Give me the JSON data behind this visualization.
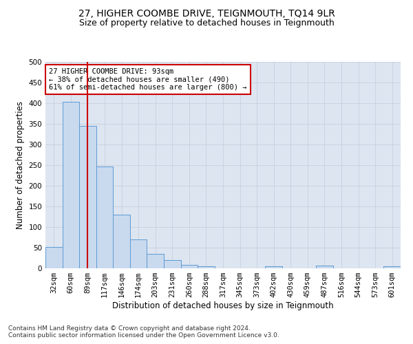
{
  "title": "27, HIGHER COOMBE DRIVE, TEIGNMOUTH, TQ14 9LR",
  "subtitle": "Size of property relative to detached houses in Teignmouth",
  "xlabel": "Distribution of detached houses by size in Teignmouth",
  "ylabel": "Number of detached properties",
  "bar_labels": [
    "32sqm",
    "60sqm",
    "89sqm",
    "117sqm",
    "146sqm",
    "174sqm",
    "203sqm",
    "231sqm",
    "260sqm",
    "288sqm",
    "317sqm",
    "345sqm",
    "373sqm",
    "402sqm",
    "430sqm",
    "459sqm",
    "487sqm",
    "516sqm",
    "544sqm",
    "573sqm",
    "601sqm"
  ],
  "bar_values": [
    51,
    403,
    345,
    246,
    130,
    70,
    35,
    20,
    8,
    5,
    0,
    0,
    0,
    5,
    0,
    0,
    6,
    0,
    0,
    0,
    5
  ],
  "bar_color": "#c9d9ee",
  "bar_edge_color": "#5b9bd5",
  "property_line_index": 2,
  "property_line_color": "#cc0000",
  "annotation_text": "27 HIGHER COOMBE DRIVE: 93sqm\n← 38% of detached houses are smaller (490)\n61% of semi-detached houses are larger (800) →",
  "annotation_box_color": "#ffffff",
  "annotation_box_edge_color": "#cc0000",
  "ylim": [
    0,
    500
  ],
  "yticks": [
    0,
    50,
    100,
    150,
    200,
    250,
    300,
    350,
    400,
    450,
    500
  ],
  "grid_color": "#c8d0e0",
  "bg_color": "#dde5f0",
  "footer_line1": "Contains HM Land Registry data © Crown copyright and database right 2024.",
  "footer_line2": "Contains public sector information licensed under the Open Government Licence v3.0.",
  "title_fontsize": 10,
  "subtitle_fontsize": 9,
  "axis_label_fontsize": 8.5,
  "tick_fontsize": 7.5,
  "annotation_fontsize": 7.5,
  "footer_fontsize": 6.5
}
